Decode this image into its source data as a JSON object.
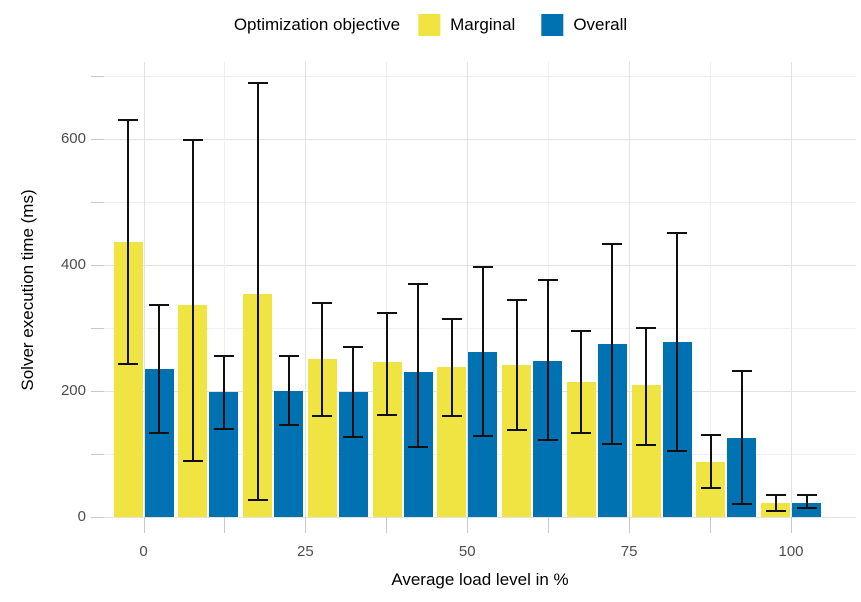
{
  "legend": {
    "title": "Optimization objective",
    "items": [
      {
        "label": "Marginal",
        "color": "#F0E442"
      },
      {
        "label": "Overall",
        "color": "#0072B2"
      }
    ]
  },
  "axes": {
    "x": {
      "title": "Average load level in %",
      "tick_labels": [
        "0",
        "25",
        "50",
        "75",
        "100"
      ],
      "tick_values": [
        0,
        25,
        50,
        75,
        100
      ],
      "minor_tick_values": [
        12.5,
        37.5,
        62.5,
        87.5
      ]
    },
    "y": {
      "title": "Solver execution time (ms)",
      "tick_labels": [
        "0",
        "200",
        "400",
        "600"
      ],
      "tick_values": [
        0,
        200,
        400,
        600
      ],
      "minor_tick_values": [
        100,
        300,
        500,
        700
      ]
    }
  },
  "chart_data": {
    "type": "bar",
    "title": "",
    "xlabel": "Average load level in %",
    "ylabel": "Solver execution time (ms)",
    "xlim": [
      -7,
      107
    ],
    "ylim": [
      0,
      700
    ],
    "grid": "on",
    "legend_position": "top",
    "bar_mode": "grouped",
    "error_bars": true,
    "x": [
      0,
      10,
      20,
      30,
      40,
      50,
      60,
      70,
      80,
      90,
      100
    ],
    "series": [
      {
        "name": "Marginal",
        "color": "#F0E442",
        "values": [
          437,
          336,
          354,
          251,
          246,
          238,
          242,
          214,
          210,
          88,
          22
        ],
        "error_low": [
          242,
          88,
          26,
          159,
          160,
          158,
          137,
          132,
          112,
          44,
          8
        ],
        "error_high": [
          632,
          600,
          690,
          341,
          325,
          316,
          346,
          297,
          302,
          132,
          36
        ]
      },
      {
        "name": "Overall",
        "color": "#0072B2",
        "values": [
          235,
          198,
          200,
          198,
          230,
          262,
          248,
          275,
          278,
          125,
          23
        ],
        "error_low": [
          132,
          138,
          144,
          126,
          110,
          127,
          120,
          115,
          103,
          19,
          12
        ],
        "error_high": [
          338,
          257,
          257,
          271,
          371,
          398,
          378,
          435,
          453,
          234,
          37
        ]
      }
    ]
  }
}
